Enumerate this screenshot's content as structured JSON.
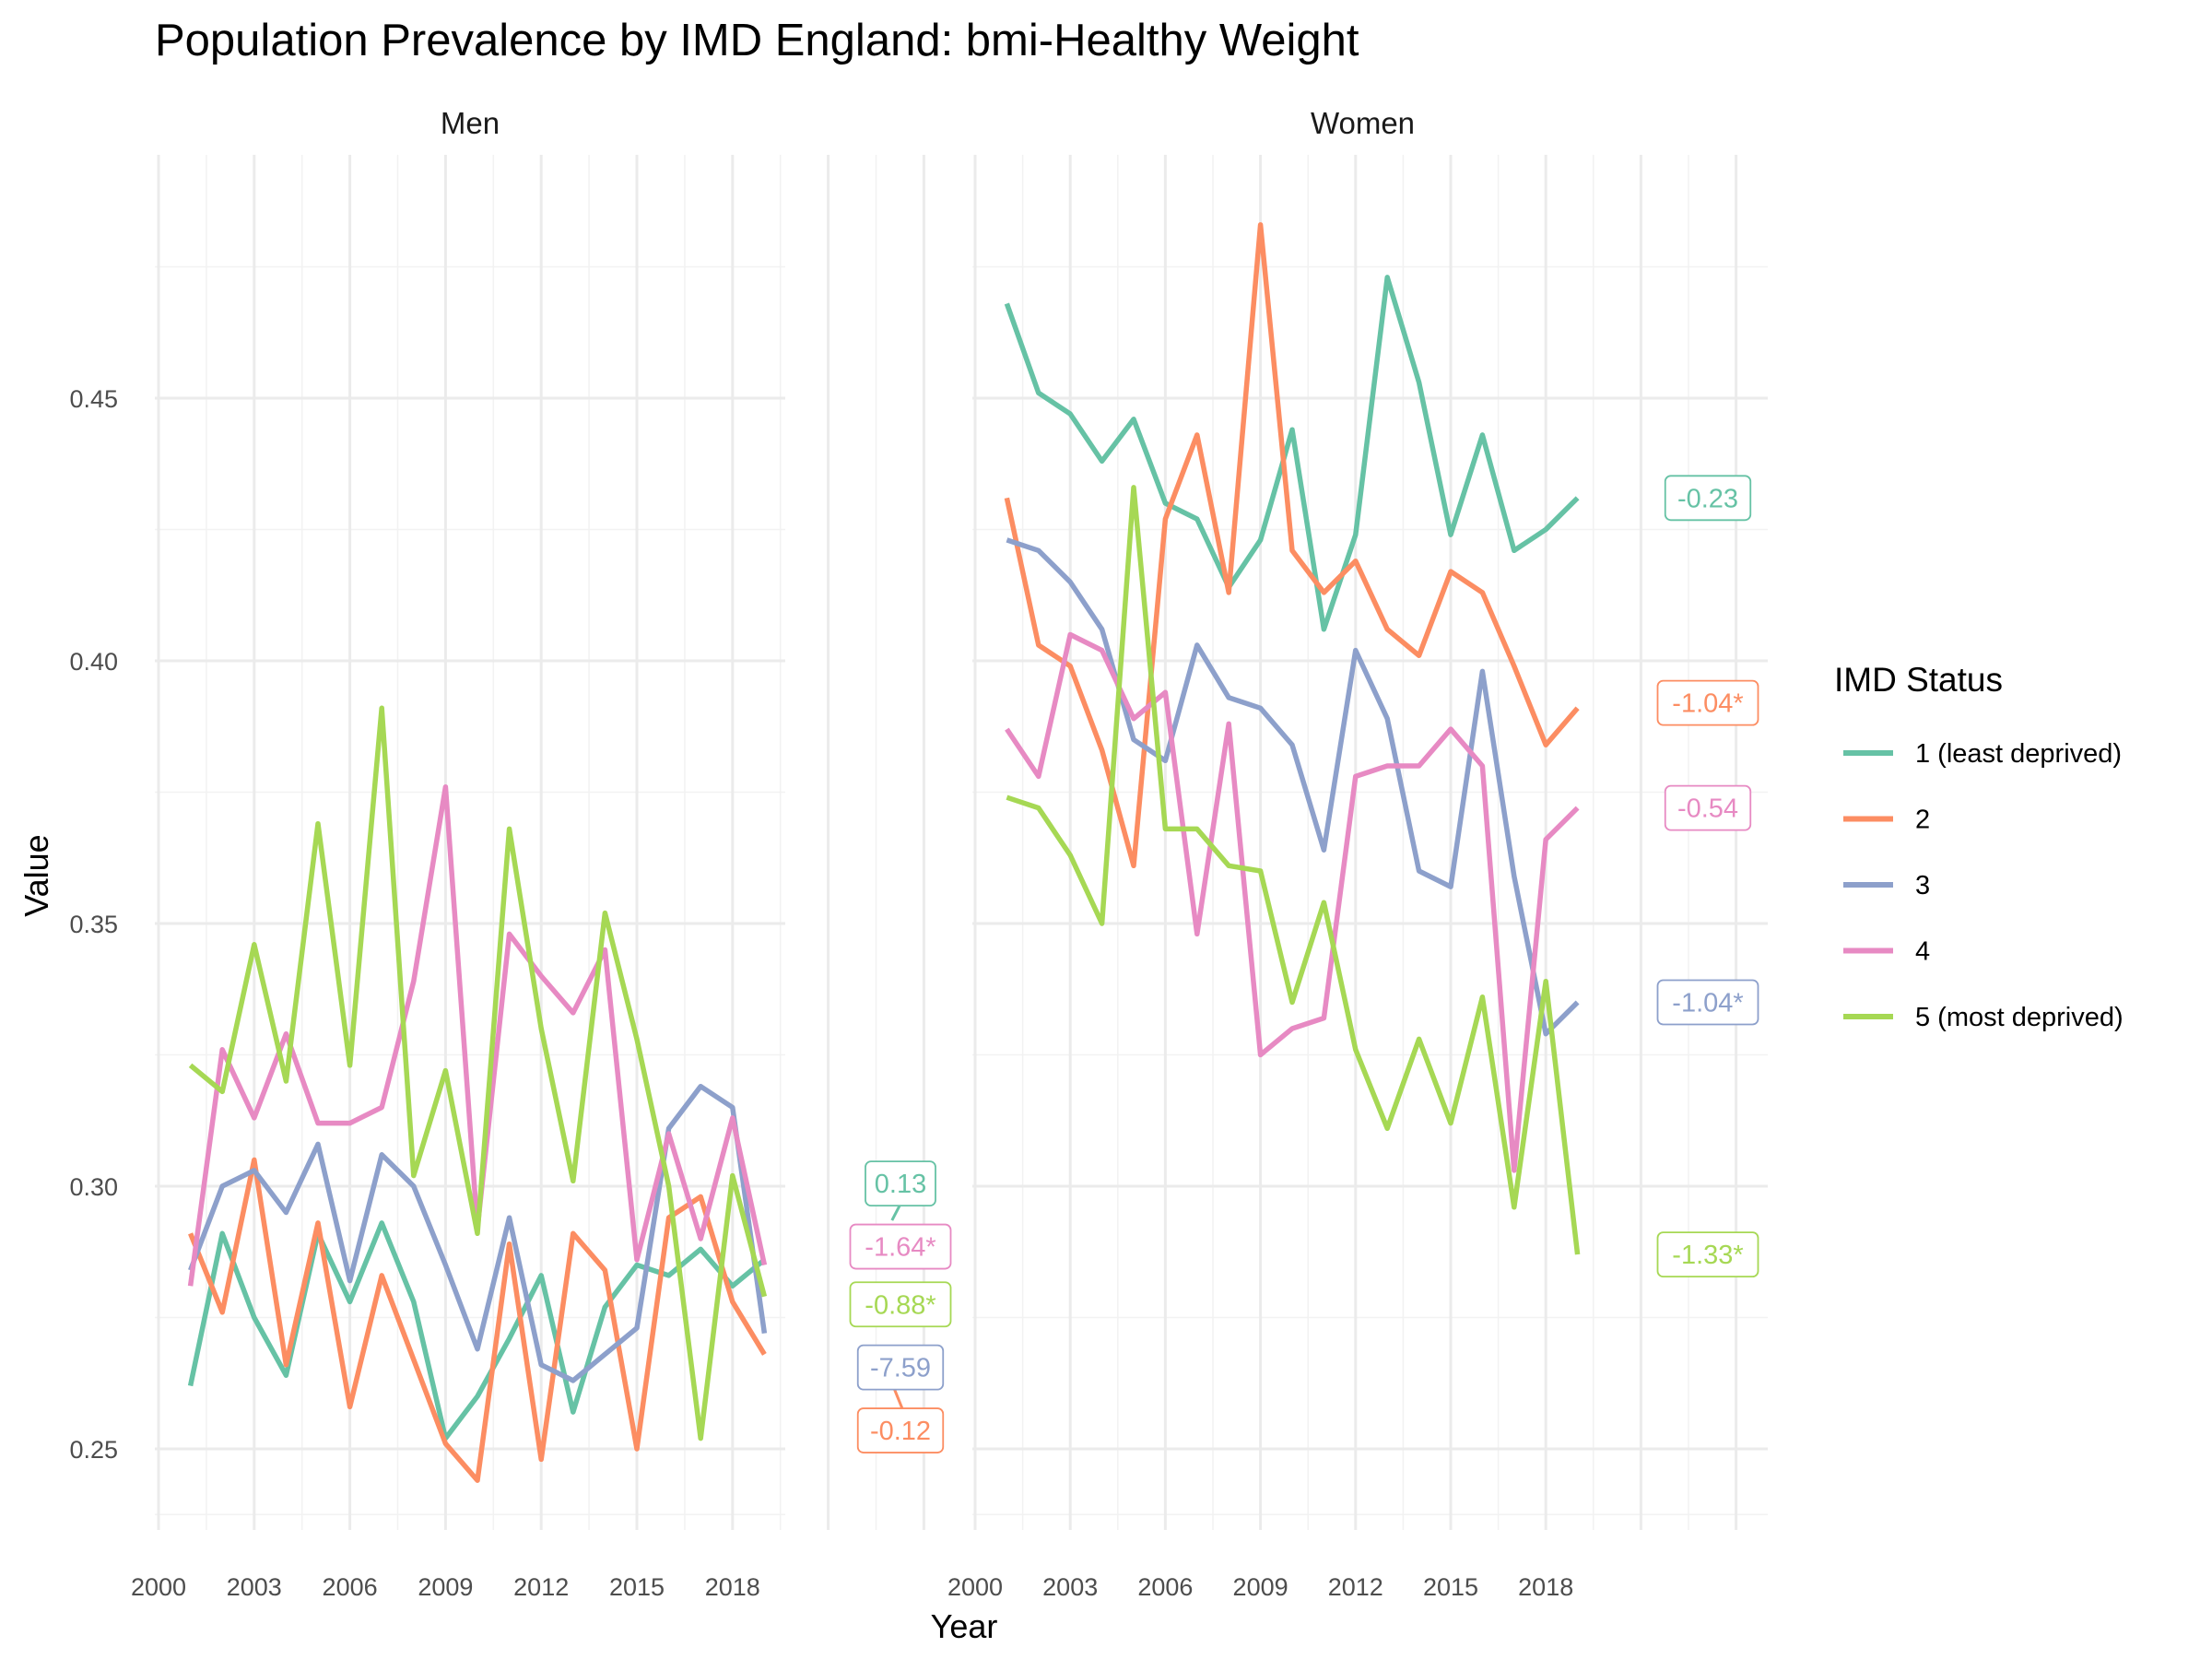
{
  "chart_data": {
    "type": "line",
    "title": "Population Prevalence by IMD England: bmi-Healthy Weight",
    "xlabel": "Year",
    "ylabel": "Value",
    "x_ticks": [
      2000,
      2003,
      2006,
      2009,
      2012,
      2015,
      2018
    ],
    "x_range": [
      2000,
      2025
    ],
    "y_ticks": [
      0.25,
      0.3,
      0.35,
      0.4,
      0.45
    ],
    "y_range": [
      0.235,
      0.48
    ],
    "grid": true,
    "legend": {
      "title": "IMD Status",
      "placement": "right",
      "entries": [
        {
          "label": "1 (least deprived)",
          "color": "#66c2a5"
        },
        {
          "label": "2",
          "color": "#fc8d62"
        },
        {
          "label": "3",
          "color": "#8da0cb"
        },
        {
          "label": "4",
          "color": "#e78ac3"
        },
        {
          "label": "5 (most deprived)",
          "color": "#a6d854"
        }
      ]
    },
    "panels": [
      {
        "title": "Men",
        "series": [
          {
            "name": "1 (least deprived)",
            "color": "#66c2a5",
            "x": [
              2001,
              2002,
              2003,
              2004,
              2005,
              2006,
              2007,
              2008,
              2009,
              2010,
              2011,
              2012,
              2013,
              2014,
              2015,
              2016,
              2017,
              2018,
              2019
            ],
            "values": [
              0.262,
              0.291,
              0.275,
              0.264,
              0.291,
              0.278,
              0.293,
              0.278,
              0.252,
              0.26,
              0.271,
              0.283,
              0.257,
              0.277,
              0.285,
              0.283,
              0.288,
              0.281,
              0.286
            ]
          },
          {
            "name": "2",
            "color": "#fc8d62",
            "x": [
              2001,
              2002,
              2003,
              2004,
              2005,
              2006,
              2007,
              2008,
              2009,
              2010,
              2011,
              2012,
              2013,
              2014,
              2015,
              2016,
              2017,
              2018,
              2019
            ],
            "values": [
              0.291,
              0.276,
              0.305,
              0.266,
              0.293,
              0.258,
              0.283,
              0.267,
              0.251,
              0.244,
              0.289,
              0.248,
              0.291,
              0.284,
              0.25,
              0.294,
              0.298,
              0.278,
              0.268
            ]
          },
          {
            "name": "3",
            "color": "#8da0cb",
            "x": [
              2001,
              2002,
              2003,
              2004,
              2005,
              2006,
              2007,
              2008,
              2009,
              2010,
              2011,
              2012,
              2013,
              2014,
              2015,
              2016,
              2017,
              2018,
              2019
            ],
            "values": [
              0.284,
              0.3,
              0.303,
              0.295,
              0.308,
              0.282,
              0.306,
              0.3,
              0.285,
              0.269,
              0.294,
              0.266,
              0.263,
              0.268,
              0.273,
              0.311,
              0.319,
              0.315,
              0.272
            ]
          },
          {
            "name": "4",
            "color": "#e78ac3",
            "x": [
              2001,
              2002,
              2003,
              2004,
              2005,
              2006,
              2007,
              2008,
              2009,
              2010,
              2011,
              2012,
              2013,
              2014,
              2015,
              2016,
              2017,
              2018,
              2019
            ],
            "values": [
              0.281,
              0.326,
              0.313,
              0.329,
              0.312,
              0.312,
              0.315,
              0.339,
              0.376,
              0.292,
              0.348,
              0.34,
              0.333,
              0.345,
              0.286,
              0.31,
              0.29,
              0.313,
              0.285
            ]
          },
          {
            "name": "5 (most deprived)",
            "color": "#a6d854",
            "x": [
              2001,
              2002,
              2003,
              2004,
              2005,
              2006,
              2007,
              2008,
              2009,
              2010,
              2011,
              2012,
              2013,
              2014,
              2015,
              2016,
              2017,
              2018,
              2019
            ],
            "values": [
              0.323,
              0.318,
              0.346,
              0.32,
              0.369,
              0.323,
              0.391,
              0.302,
              0.322,
              0.291,
              0.368,
              0.33,
              0.301,
              0.352,
              0.328,
              0.3,
              0.252,
              0.302,
              0.279
            ]
          }
        ],
        "trend_labels": [
          {
            "text": "0.13",
            "color": "#66c2a5",
            "y": 0.3005
          },
          {
            "text": "-1.64*",
            "color": "#e78ac3",
            "y": 0.2885
          },
          {
            "text": "-0.88*",
            "color": "#a6d854",
            "y": 0.2775
          },
          {
            "text": "-7.59",
            "color": "#8da0cb",
            "y": 0.2655
          },
          {
            "text": "-0.12",
            "color": "#fc8d62",
            "y": 0.2535
          }
        ],
        "trend_stubs": [
          {
            "color": "#66c2a5",
            "x": [
              2023.0,
              2023.6
            ],
            "y": [
              0.2935,
              0.3005
            ]
          },
          {
            "color": "#fc8d62",
            "x": [
              2023.0,
              2023.6
            ],
            "y": [
              0.2625,
              0.2535
            ]
          }
        ]
      },
      {
        "title": "Women",
        "series": [
          {
            "name": "1 (least deprived)",
            "color": "#66c2a5",
            "x": [
              2001,
              2002,
              2003,
              2004,
              2005,
              2006,
              2007,
              2008,
              2009,
              2010,
              2011,
              2012,
              2013,
              2014,
              2015,
              2016,
              2017,
              2018,
              2019
            ],
            "values": [
              0.468,
              0.451,
              0.447,
              0.438,
              0.446,
              0.43,
              0.427,
              0.414,
              0.423,
              0.444,
              0.406,
              0.424,
              0.473,
              0.453,
              0.424,
              0.443,
              0.421,
              0.425,
              0.431
            ]
          },
          {
            "name": "2",
            "color": "#fc8d62",
            "x": [
              2001,
              2002,
              2003,
              2004,
              2005,
              2006,
              2007,
              2008,
              2009,
              2010,
              2011,
              2012,
              2013,
              2014,
              2015,
              2016,
              2017,
              2018,
              2019
            ],
            "values": [
              0.431,
              0.403,
              0.399,
              0.383,
              0.361,
              0.427,
              0.443,
              0.413,
              0.483,
              0.421,
              0.413,
              0.419,
              0.406,
              0.401,
              0.417,
              0.413,
              0.399,
              0.384,
              0.391
            ]
          },
          {
            "name": "3",
            "color": "#8da0cb",
            "x": [
              2001,
              2002,
              2003,
              2004,
              2005,
              2006,
              2007,
              2008,
              2009,
              2010,
              2011,
              2012,
              2013,
              2014,
              2015,
              2016,
              2017,
              2018,
              2019
            ],
            "values": [
              0.423,
              0.421,
              0.415,
              0.406,
              0.385,
              0.381,
              0.403,
              0.393,
              0.391,
              0.384,
              0.364,
              0.402,
              0.389,
              0.36,
              0.357,
              0.398,
              0.359,
              0.329,
              0.335
            ]
          },
          {
            "name": "4",
            "color": "#e78ac3",
            "x": [
              2001,
              2002,
              2003,
              2004,
              2005,
              2006,
              2007,
              2008,
              2009,
              2010,
              2011,
              2012,
              2013,
              2014,
              2015,
              2016,
              2017,
              2018,
              2019
            ],
            "values": [
              0.387,
              0.378,
              0.405,
              0.402,
              0.389,
              0.394,
              0.348,
              0.388,
              0.325,
              0.33,
              0.332,
              0.378,
              0.38,
              0.38,
              0.387,
              0.38,
              0.303,
              0.366,
              0.372
            ]
          },
          {
            "name": "5 (most deprived)",
            "color": "#a6d854",
            "x": [
              2001,
              2002,
              2003,
              2004,
              2005,
              2006,
              2007,
              2008,
              2009,
              2010,
              2011,
              2012,
              2013,
              2014,
              2015,
              2016,
              2017,
              2018,
              2019
            ],
            "values": [
              0.374,
              0.372,
              0.363,
              0.35,
              0.433,
              0.368,
              0.368,
              0.361,
              0.36,
              0.335,
              0.354,
              0.326,
              0.311,
              0.328,
              0.312,
              0.336,
              0.296,
              0.339,
              0.287
            ]
          }
        ],
        "trend_labels": [
          {
            "text": "-0.23",
            "color": "#66c2a5",
            "y": 0.431
          },
          {
            "text": "-1.04*",
            "color": "#fc8d62",
            "y": 0.392
          },
          {
            "text": "-0.54",
            "color": "#e78ac3",
            "y": 0.372
          },
          {
            "text": "-1.04*",
            "color": "#8da0cb",
            "y": 0.335
          },
          {
            "text": "-1.33*",
            "color": "#a6d854",
            "y": 0.287
          }
        ],
        "trend_stubs": []
      }
    ]
  }
}
